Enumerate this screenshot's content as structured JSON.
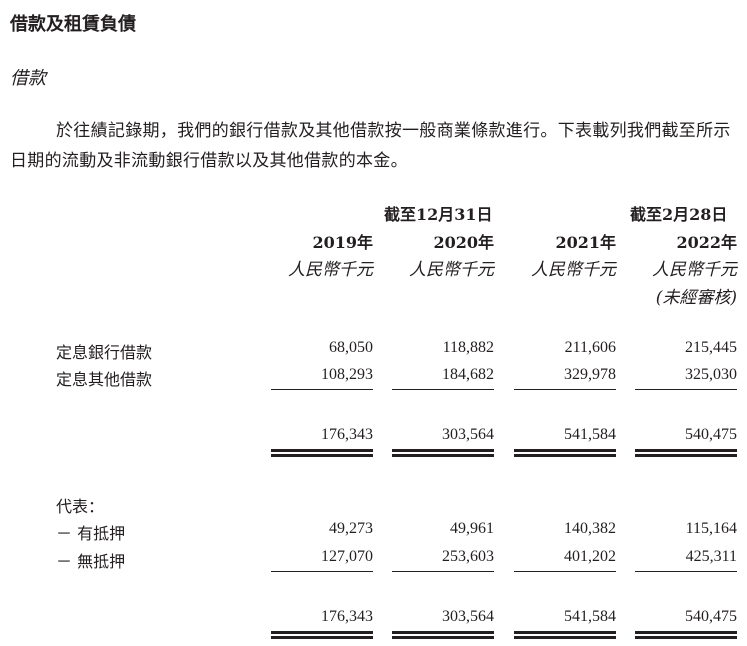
{
  "section_title": "借款及租賃負債",
  "subsection_title": "借款",
  "paragraph": "於往績記錄期，我們的銀行借款及其他借款按一般商業條款進行。下表載列我們截至所示日期的流動及非流動銀行借款以及其他借款的本金。",
  "table": {
    "group_headers": [
      "截至12月31日",
      "截至2月28日"
    ],
    "columns": [
      {
        "year": "2019年",
        "unit": "人民幣千元"
      },
      {
        "year": "2020年",
        "unit": "人民幣千元"
      },
      {
        "year": "2021年",
        "unit": "人民幣千元"
      },
      {
        "year": "2022年",
        "unit": "人民幣千元",
        "note": "(未經審核)"
      }
    ],
    "rows1": [
      {
        "label": "定息銀行借款",
        "values": [
          "68,050",
          "118,882",
          "211,606",
          "215,445"
        ]
      },
      {
        "label": "定息其他借款",
        "values": [
          "108,293",
          "184,682",
          "329,978",
          "325,030"
        ]
      }
    ],
    "total1": [
      "176,343",
      "303,564",
      "541,584",
      "540,475"
    ],
    "represented_label": "代表：",
    "rows2": [
      {
        "label": "－ 有抵押",
        "values": [
          "49,273",
          "49,961",
          "140,382",
          "115,164"
        ]
      },
      {
        "label": "－ 無抵押",
        "values": [
          "127,070",
          "253,603",
          "401,202",
          "425,311"
        ]
      }
    ],
    "total2": [
      "176,343",
      "303,564",
      "541,584",
      "540,475"
    ]
  }
}
